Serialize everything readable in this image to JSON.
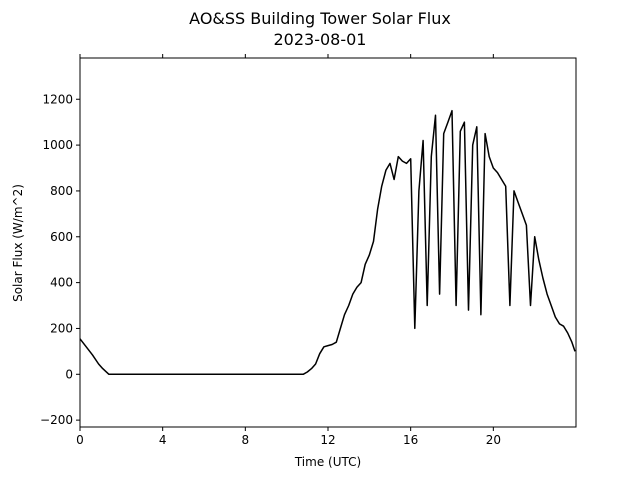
{
  "chart_data": {
    "type": "line",
    "title": "AO&SS Building Tower Solar Flux",
    "subtitle": "2023-08-01",
    "xlabel": "Time (UTC)",
    "ylabel": "Solar Flux (W/m^2)",
    "xlim": [
      0,
      24
    ],
    "ylim": [
      -230,
      1380
    ],
    "x_ticks": [
      {
        "value": 0,
        "label": "0"
      },
      {
        "value": 4,
        "label": "4"
      },
      {
        "value": 8,
        "label": "8"
      },
      {
        "value": 12,
        "label": "12"
      },
      {
        "value": 16,
        "label": "16"
      },
      {
        "value": 20,
        "label": "20"
      }
    ],
    "y_ticks": [
      {
        "value": -200,
        "label": "−200"
      },
      {
        "value": 0,
        "label": "0"
      },
      {
        "value": 200,
        "label": "200"
      },
      {
        "value": 400,
        "label": "400"
      },
      {
        "value": 600,
        "label": "600"
      },
      {
        "value": 800,
        "label": "800"
      },
      {
        "value": 1000,
        "label": "1000"
      },
      {
        "value": 1200,
        "label": "1200"
      }
    ],
    "grid": false,
    "line_color": "#000000",
    "series": [
      {
        "x": [
          0,
          0.3,
          0.6,
          0.9,
          1.1,
          1.4,
          2,
          4,
          6,
          8,
          10,
          10.8,
          11.0,
          11.2,
          11.4,
          11.6,
          11.8,
          12.0,
          12.2,
          12.4,
          12.6,
          12.8,
          13.0,
          13.2,
          13.4,
          13.6,
          13.8,
          14.0,
          14.2,
          14.4,
          14.6,
          14.8,
          15.0,
          15.2,
          15.4,
          15.6,
          15.8,
          16.0,
          16.2,
          16.4,
          16.6,
          16.8,
          17.0,
          17.2,
          17.4,
          17.6,
          17.8,
          18.0,
          18.2,
          18.4,
          18.6,
          18.8,
          19.0,
          19.2,
          19.4,
          19.6,
          19.8,
          20.0,
          20.2,
          20.4,
          20.6,
          20.8,
          21.0,
          21.2,
          21.4,
          21.6,
          21.8,
          22.0,
          22.2,
          22.4,
          22.6,
          22.8,
          23.0,
          23.2,
          23.4,
          23.6,
          23.8,
          23.95
        ],
        "y": [
          155,
          120,
          85,
          45,
          25,
          0,
          0,
          0,
          0,
          0,
          0,
          0,
          10,
          25,
          45,
          90,
          120,
          125,
          130,
          140,
          200,
          260,
          300,
          350,
          380,
          400,
          480,
          520,
          580,
          720,
          820,
          890,
          920,
          850,
          950,
          930,
          920,
          940,
          200,
          800,
          1020,
          300,
          950,
          1130,
          350,
          1050,
          1100,
          1150,
          300,
          1060,
          1100,
          280,
          1000,
          1080,
          260,
          1050,
          950,
          900,
          880,
          850,
          820,
          300,
          800,
          750,
          700,
          650,
          300,
          600,
          500,
          420,
          350,
          300,
          250,
          220,
          210,
          180,
          140,
          100
        ]
      }
    ]
  }
}
